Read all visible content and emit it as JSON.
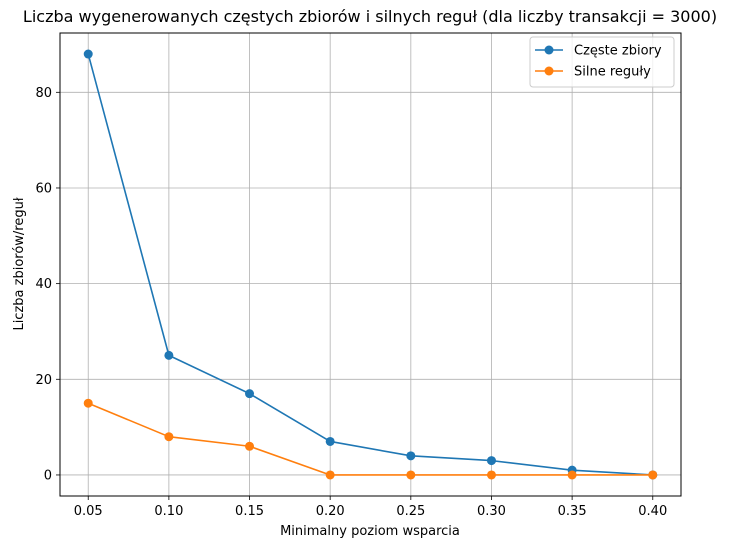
{
  "chart_data": {
    "type": "line",
    "title": "Liczba wygenerowanych częstych zbiorów i silnych reguł (dla liczby transakcji = 3000)",
    "xlabel": "Minimalny poziom wsparcia",
    "ylabel": "Liczba zbiorów/reguł",
    "x": [
      0.05,
      0.1,
      0.15,
      0.2,
      0.25,
      0.3,
      0.35,
      0.4
    ],
    "x_tick_labels": [
      "0.05",
      "0.10",
      "0.15",
      "0.20",
      "0.25",
      "0.30",
      "0.35",
      "0.40"
    ],
    "y_ticks": [
      0,
      20,
      40,
      60,
      80
    ],
    "y_tick_labels": [
      "0",
      "20",
      "40",
      "60",
      "80"
    ],
    "xlim": [
      0.0325,
      0.4175
    ],
    "ylim": [
      -4.4,
      92.4
    ],
    "grid": true,
    "legend_position": "top-right",
    "series": [
      {
        "name": "Częste zbiory",
        "color": "#1f77b4",
        "values": [
          88,
          25,
          17,
          7,
          4,
          3,
          1,
          0
        ]
      },
      {
        "name": "Silne reguły",
        "color": "#ff7f0e",
        "values": [
          15,
          8,
          6,
          0,
          0,
          0,
          0,
          0
        ]
      }
    ]
  }
}
